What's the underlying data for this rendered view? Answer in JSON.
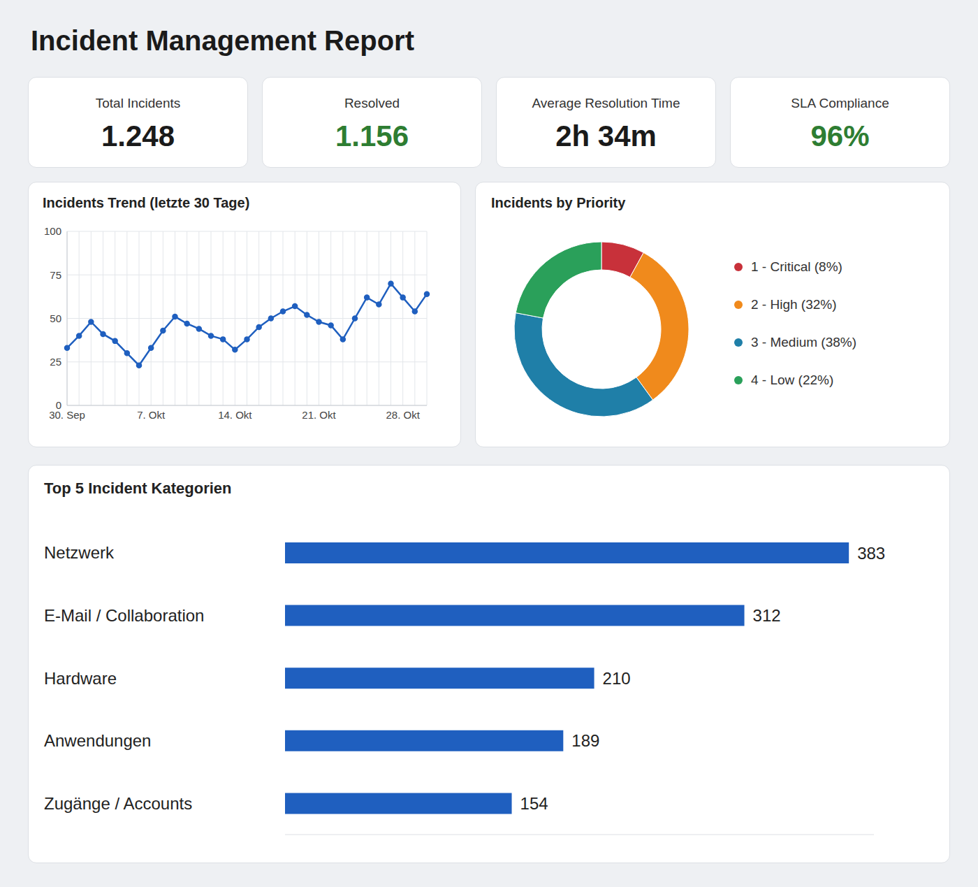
{
  "title": "Incident Management Report",
  "kpis": [
    {
      "label": "Total Incidents",
      "value": "1.248",
      "color": "#1a1a1a"
    },
    {
      "label": "Resolved",
      "value": "1.156",
      "color": "#2e7d32"
    },
    {
      "label": "Average Resolution Time",
      "value": "2h 34m",
      "color": "#1a1a1a"
    },
    {
      "label": "SLA Compliance",
      "value": "96%",
      "color": "#2e7d32"
    }
  ],
  "chart_data": [
    {
      "type": "line",
      "title": "Incidents Trend (letzte 30 Tage)",
      "categories": [
        "30. Sep",
        null,
        null,
        null,
        null,
        null,
        null,
        "7. Okt",
        null,
        null,
        null,
        null,
        null,
        null,
        "14. Okt",
        null,
        null,
        null,
        null,
        null,
        null,
        "21. Okt",
        null,
        null,
        null,
        null,
        null,
        null,
        "28. Okt",
        null,
        null
      ],
      "values": [
        33,
        40,
        48,
        41,
        37,
        30,
        23,
        33,
        43,
        51,
        47,
        44,
        40,
        38,
        32,
        38,
        45,
        50,
        54,
        57,
        52,
        48,
        46,
        38,
        50,
        62,
        58,
        70,
        62,
        54,
        64
      ],
      "color": "#1f5fbf",
      "ylim": [
        0,
        100
      ],
      "yticks": [
        0,
        25,
        50,
        75,
        100
      ],
      "grid": true,
      "marker": "circle"
    },
    {
      "type": "pie",
      "title": "Incidents by Priority",
      "categories": [
        "1 - Critical (8%)",
        "2 - High (32%)",
        "3 - Medium (38%)",
        "4 - Low (22%)"
      ],
      "values": [
        8,
        32,
        38,
        22
      ],
      "colors": [
        "#c8313a",
        "#f08a1c",
        "#1f7fa8",
        "#2aa05a"
      ],
      "legend": "right"
    },
    {
      "type": "bar",
      "title": "Top 5 Incident Kategorien",
      "orientation": "horizontal",
      "categories": [
        "Netzwerk",
        "E-Mail / Collaboration",
        "Hardware",
        "Anwendungen",
        "Zugänge / Accounts"
      ],
      "values": [
        383,
        312,
        210,
        189,
        154
      ],
      "color": "#1f5fbf",
      "xlim": [
        0,
        400
      ],
      "data_labels": true,
      "tick_labels": "y"
    }
  ]
}
